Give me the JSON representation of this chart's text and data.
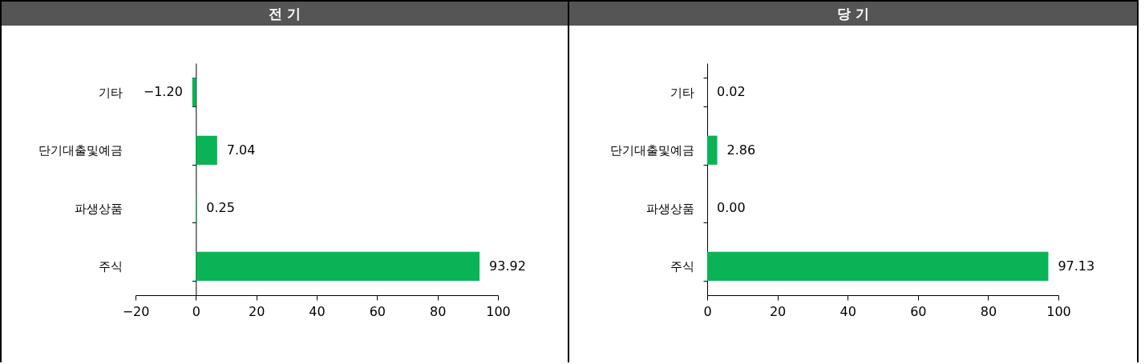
{
  "chart_data": [
    {
      "type": "bar",
      "orientation": "horizontal",
      "title": "전 기",
      "categories": [
        "기타",
        "단기대출및예금",
        "파생상품",
        "주식"
      ],
      "values": [
        -1.2,
        7.04,
        0.25,
        93.92
      ],
      "color": "#0ab356",
      "xlim": [
        -20,
        100
      ],
      "xticks": [
        -20,
        0,
        20,
        40,
        60,
        80,
        100
      ],
      "value_labels": [
        "−1.20",
        "7.04",
        "0.25",
        "93.92"
      ]
    },
    {
      "type": "bar",
      "orientation": "horizontal",
      "title": "당 기",
      "categories": [
        "기타",
        "단기대출및예금",
        "파생상품",
        "주식"
      ],
      "values": [
        0.02,
        2.86,
        0.0,
        97.13
      ],
      "color": "#0ab356",
      "xlim": [
        0,
        100
      ],
      "xticks": [
        0,
        20,
        40,
        60,
        80,
        100
      ],
      "value_labels": [
        "0.02",
        "2.86",
        "0.00",
        "97.13"
      ]
    }
  ]
}
